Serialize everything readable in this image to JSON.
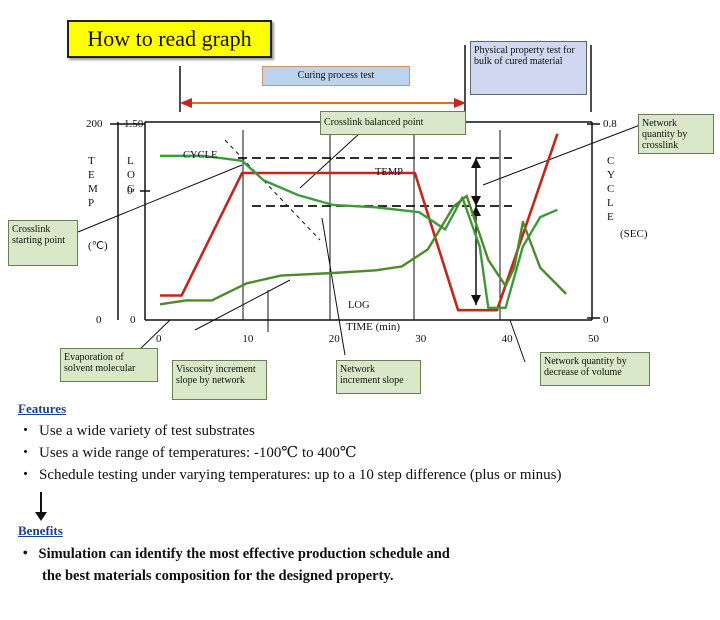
{
  "title": "How to read graph",
  "labels": {
    "curing_test": "Curing process test",
    "physical_test": "Physical property test for bulk of cured material",
    "crosslink_balanced": "Crosslink balanced point",
    "network_quantity_crosslink": "Network quantity by crosslink",
    "crosslink_starting": "Crosslink starting point",
    "evaporation": "Evaporation of solvent molecular",
    "viscosity_slope": "Viscosity increment slope by network",
    "network_slope": "Network increment slope",
    "network_decrease": "Network quantity by decrease of volume"
  },
  "chart_data": {
    "type": "line",
    "xlabel": "TIME (min)",
    "x_ticks": [
      "0",
      "10",
      "20",
      "30",
      "40",
      "50"
    ],
    "xlim": [
      0,
      50
    ],
    "left_axis_temp": {
      "label": "TEMP",
      "unit": "(℃)",
      "ticks": [
        "200",
        "0"
      ],
      "range": [
        0,
        200
      ]
    },
    "left_axis_log": {
      "label": "LOG",
      "ticks": [
        "1.50",
        "0",
        "0"
      ],
      "range": [
        0,
        1.5
      ]
    },
    "right_axis": {
      "label": "CYCLE",
      "unit": "(SEC)",
      "ticks": [
        "0.8",
        "0"
      ],
      "range": [
        0,
        0.8
      ]
    },
    "series": [
      {
        "name": "TEMP",
        "color": "#c0271f",
        "x": [
          0,
          2.5,
          9.5,
          29.5,
          34.5,
          39,
          46
        ],
        "y": [
          25,
          25,
          150,
          150,
          10,
          10,
          190
        ]
      },
      {
        "name": "CYCLE",
        "color": "#3d9a3d",
        "x": [
          0,
          5,
          9.5,
          12,
          16,
          20,
          25,
          30,
          33,
          35,
          37,
          38,
          40,
          42,
          44,
          46
        ],
        "y": [
          0.67,
          0.67,
          0.65,
          0.57,
          0.51,
          0.47,
          0.46,
          0.44,
          0.37,
          0.5,
          0.3,
          0.05,
          0.05,
          0.3,
          0.42,
          0.45
        ]
      },
      {
        "name": "LOG",
        "color": "#4d8a2d",
        "x": [
          0,
          3,
          6,
          10,
          14,
          20,
          25,
          28,
          31,
          34,
          35.5,
          38,
          40,
          41,
          42,
          44,
          47
        ],
        "y": [
          0.12,
          0.15,
          0.15,
          0.28,
          0.34,
          0.36,
          0.38,
          0.41,
          0.54,
          0.87,
          0.95,
          0.46,
          0.26,
          0.4,
          0.75,
          0.4,
          0.2
        ]
      }
    ]
  },
  "features": {
    "heading": "Features",
    "items": [
      "Use a wide variety of test substrates",
      "Uses a wide range of temperatures: -100℃ to 400℃",
      "Schedule testing under varying temperatures: up to a 10 step difference (plus or minus)"
    ]
  },
  "benefits": {
    "heading": "Benefits",
    "line1": "Simulation can identify the most effective  production schedule and",
    "line2": "the best materials composition for the designed property."
  }
}
